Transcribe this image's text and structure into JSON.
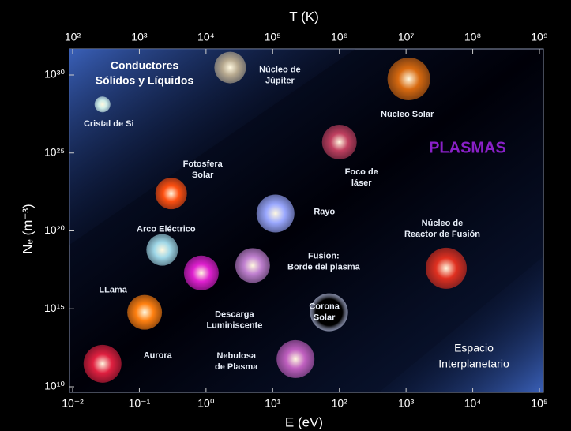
{
  "chart_data": {
    "type": "scatter",
    "x_label": "E (eV)",
    "x2_label": "T (K)",
    "y_label": "Nₑ (m⁻³)",
    "log_x": true,
    "log_y": true,
    "xlim": [
      0.01,
      100000
    ],
    "x2lim": [
      100,
      1000000000
    ],
    "ylim": [
      10000000000.0,
      1e+30
    ],
    "xticks": [
      {
        "value": 0.01,
        "label": "10⁻²"
      },
      {
        "value": 0.1,
        "label": "10⁻¹"
      },
      {
        "value": 1,
        "label": "10⁰"
      },
      {
        "value": 10,
        "label": "10¹"
      },
      {
        "value": 100,
        "label": "10²"
      },
      {
        "value": 1000,
        "label": "10³"
      },
      {
        "value": 10000,
        "label": "10⁴"
      },
      {
        "value": 100000,
        "label": "10⁵"
      }
    ],
    "x2ticks": [
      {
        "value": 100,
        "label": "10²"
      },
      {
        "value": 1000,
        "label": "10³"
      },
      {
        "value": 10000,
        "label": "10⁴"
      },
      {
        "value": 100000,
        "label": "10⁵"
      },
      {
        "value": 1000000,
        "label": "10⁶"
      },
      {
        "value": 10000000,
        "label": "10⁷"
      },
      {
        "value": 100000000,
        "label": "10⁸"
      },
      {
        "value": 1000000000,
        "label": "10⁹"
      }
    ],
    "yticks": [
      {
        "value": 10000000000.0,
        "label": "10¹⁰"
      },
      {
        "value": 1000000000000000.0,
        "label": "10¹⁵"
      },
      {
        "value": 1e+20,
        "label": "10²⁰"
      },
      {
        "value": 1e+25,
        "label": "10²⁵"
      },
      {
        "value": 1e+30,
        "label": "10³⁰"
      }
    ],
    "regions": [
      [
        "Conductores",
        "Sólidos y Líquidos"
      ],
      [
        "PLASMAS"
      ],
      [
        "Espacio",
        "Interplanetario"
      ]
    ],
    "points": [
      {
        "label": [
          "Núcleo de",
          "Júpiter"
        ],
        "x": 2.3,
        "y": 3e+30,
        "color": "#b7a98f"
      },
      {
        "label": [
          "Cristal de Si"
        ],
        "x": 0.028,
        "y": 1.3e+28,
        "color": "#cfeee8"
      },
      {
        "label": [
          "Núcleo  Solar"
        ],
        "x": 1100,
        "y": 5.6e+29,
        "color": "#d86a10"
      },
      {
        "label": [
          "Foco de",
          "láser"
        ],
        "x": 100,
        "y": 5e+25,
        "color": "#c04060"
      },
      {
        "label": [
          "Fotosfera",
          "Solar"
        ],
        "x": 0.3,
        "y": 2.5e+22,
        "color": "#ff5010"
      },
      {
        "label": [
          "Rayo"
        ],
        "x": 11,
        "y": 1.3e+21,
        "color": "#9aa8ff"
      },
      {
        "label": [
          "Arco Eléctrico"
        ],
        "x": 0.22,
        "y": 6e+18,
        "color": "#a0d8e8"
      },
      {
        "label": [
          "Fusion:",
          "Borde del plasma"
        ],
        "x": 5,
        "y": 6e+17,
        "color": "#c080d0"
      },
      {
        "label": [
          "Núcleo de",
          "Reactor de Fusión"
        ],
        "x": 4000,
        "y": 4e+17,
        "color": "#e03020"
      },
      {
        "label": [
          "Descarga",
          "Luminiscente"
        ],
        "x": 0.85,
        "y": 2e+17,
        "color": "#e020d0"
      },
      {
        "label": [
          "LLama"
        ],
        "x": 0.12,
        "y": 600000000000000.0,
        "color": "#ff8010"
      },
      {
        "label": [
          "Corona",
          "Solar"
        ],
        "x": 70,
        "y": 600000000000000.0,
        "color": "#000000"
      },
      {
        "label": [
          "Aurora"
        ],
        "x": 0.028,
        "y": 300000000000.0,
        "color": "#e02040"
      },
      {
        "label": [
          "Nebulosa",
          "de Plasma"
        ],
        "x": 22,
        "y": 600000000000.0,
        "color": "#c060c0"
      }
    ]
  }
}
